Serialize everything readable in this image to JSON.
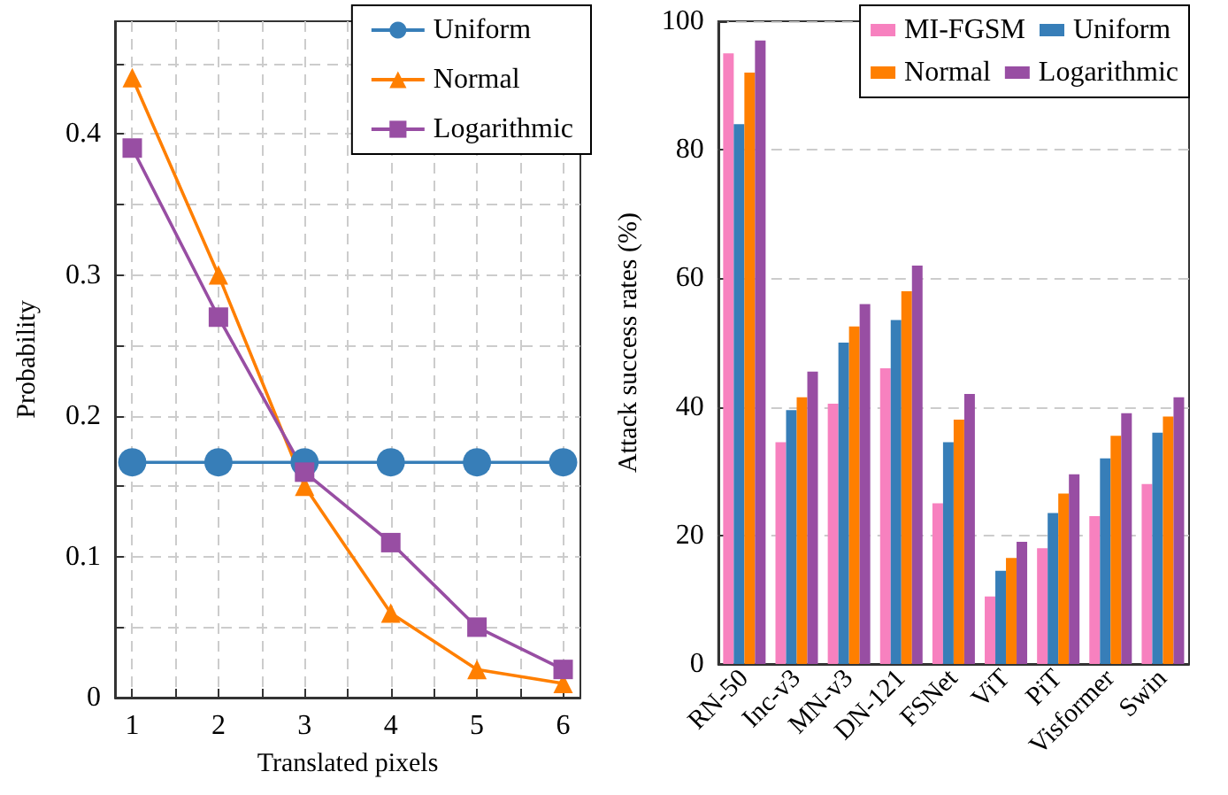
{
  "chart_data": [
    {
      "type": "line",
      "xlabel": "Translated pixels",
      "ylabel": "Probability",
      "x": [
        1,
        2,
        3,
        4,
        5,
        6
      ],
      "xlim": [
        0.8,
        6.2
      ],
      "ylim": [
        0,
        0.48
      ],
      "xticks": [
        1,
        {
          "value": 1.5,
          "label": null
        },
        2,
        {
          "value": 2.5,
          "label": null
        },
        3,
        {
          "value": 3.5,
          "label": null
        },
        4,
        {
          "value": 4.5,
          "label": null
        },
        5,
        {
          "value": 5.5,
          "label": null
        },
        6
      ],
      "yticks": [
        0,
        {
          "value": 0.05,
          "label": null
        },
        0.1,
        {
          "value": 0.15,
          "label": null
        },
        0.2,
        {
          "value": 0.25,
          "label": null
        },
        0.3,
        {
          "value": 0.35,
          "label": null
        },
        0.4,
        {
          "value": 0.45,
          "label": null
        }
      ],
      "grid": true,
      "legend": "top right",
      "series": [
        {
          "name": "Uniform",
          "color": "#377eb8",
          "marker": "circle",
          "values": [
            0.167,
            0.167,
            0.167,
            0.167,
            0.167,
            0.167
          ]
        },
        {
          "name": "Normal",
          "color": "#ff7f00",
          "marker": "triangle",
          "values": [
            0.44,
            0.3,
            0.15,
            0.06,
            0.02,
            0.01
          ]
        },
        {
          "name": "Logarithmic",
          "color": "#984ea3",
          "marker": "square",
          "values": [
            0.39,
            0.27,
            0.16,
            0.11,
            0.05,
            0.02
          ]
        }
      ]
    },
    {
      "type": "bar",
      "ylabel": "Attack success rates (%)",
      "categories": [
        "RN-50",
        "Inc-v3",
        "MN-v3",
        "DN-121",
        "FSNet",
        "ViT",
        "PiT",
        "Visformer",
        "Swin"
      ],
      "ylim": [
        0,
        100
      ],
      "yticks": [
        0,
        20,
        40,
        60,
        80,
        100
      ],
      "grid": "y",
      "legend": "top right",
      "series": [
        {
          "name": "MI-FGSM",
          "color": "#f781bf",
          "values": [
            95,
            34.5,
            40.5,
            46,
            25,
            10.5,
            18,
            23,
            28
          ]
        },
        {
          "name": "Uniform",
          "color": "#377eb8",
          "values": [
            84,
            39.5,
            50,
            53.5,
            34.5,
            14.5,
            23.5,
            32,
            36
          ]
        },
        {
          "name": "Normal",
          "color": "#ff7f00",
          "values": [
            92,
            41.5,
            52.5,
            58,
            38,
            16.5,
            26.5,
            35.5,
            38.5
          ]
        },
        {
          "name": "Logarithmic",
          "color": "#984ea3",
          "values": [
            97,
            45.5,
            56,
            62,
            42,
            19,
            29.5,
            39,
            41.5
          ]
        }
      ]
    }
  ]
}
